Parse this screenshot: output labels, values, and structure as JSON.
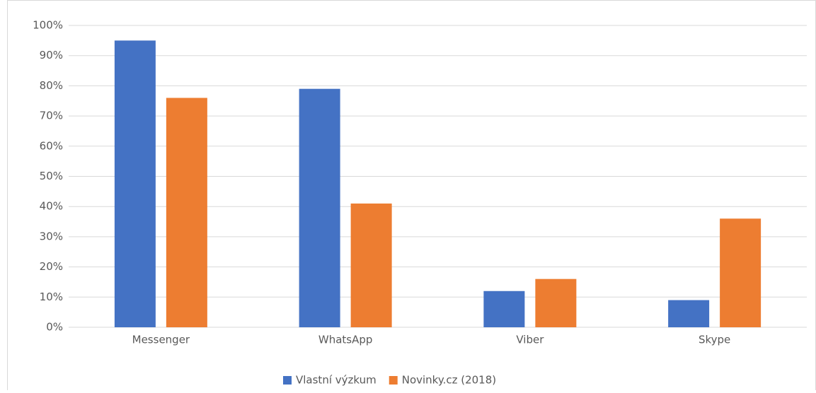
{
  "chart_data": {
    "type": "bar",
    "categories": [
      "Messenger",
      "WhatsApp",
      "Viber",
      "Skype"
    ],
    "series": [
      {
        "name": "Vlastní výzkum",
        "color": "#4472c4",
        "values": [
          95,
          79,
          12,
          9
        ]
      },
      {
        "name": "Novinky.cz (2018)",
        "color": "#ed7d31",
        "values": [
          76,
          41,
          16,
          36
        ]
      }
    ],
    "ylim": [
      0,
      100
    ],
    "yticks": [
      {
        "value": 0,
        "label": "0%"
      },
      {
        "value": 10,
        "label": "10%"
      },
      {
        "value": 20,
        "label": "20%"
      },
      {
        "value": 30,
        "label": "30%"
      },
      {
        "value": 40,
        "label": "40%"
      },
      {
        "value": 50,
        "label": "50%"
      },
      {
        "value": 60,
        "label": "60%"
      },
      {
        "value": 70,
        "label": "70%"
      },
      {
        "value": 80,
        "label": "80%"
      },
      {
        "value": 90,
        "label": "90%"
      },
      {
        "value": 100,
        "label": "100%"
      }
    ],
    "grid": true,
    "legend": "bottom"
  }
}
